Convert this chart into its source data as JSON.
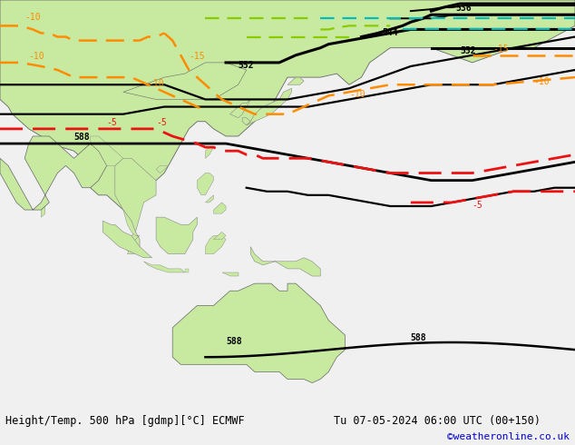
{
  "title_left": "Height/Temp. 500 hPa [gdmp][°C] ECMWF",
  "title_right": "Tu 07-05-2024 06:00 UTC (00+150)",
  "credit": "©weatheronline.co.uk",
  "land_color": "#c8eaa0",
  "sea_color": "#d2d2d2",
  "border_color": "#888888",
  "fig_width": 6.34,
  "fig_height": 4.9,
  "dpi": 100,
  "bottom_bar_color": "#f0f0f0",
  "title_fontsize": 8.5,
  "credit_color": "#0000cc",
  "credit_fontsize": 8,
  "map_lon_min": 70,
  "map_lon_max": 210,
  "map_lat_min": -45,
  "map_lat_max": 65
}
